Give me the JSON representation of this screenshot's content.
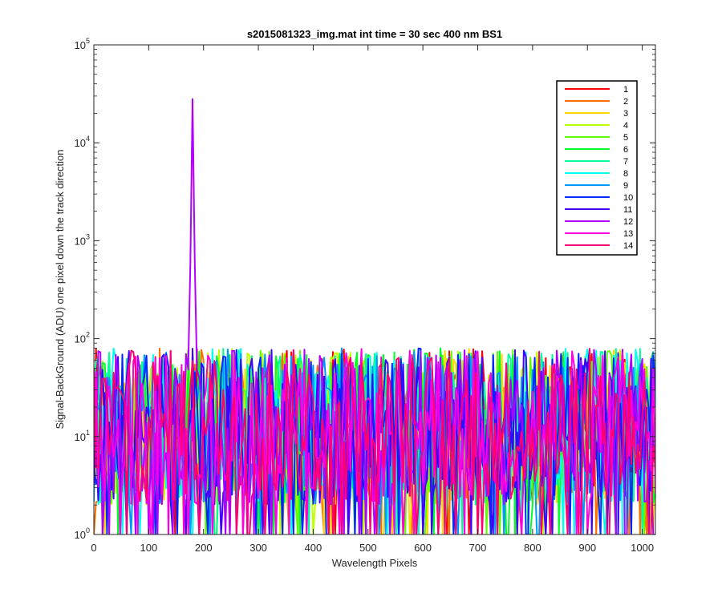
{
  "chart_data": {
    "type": "line",
    "title": "s2015081323_img.mat int time = 30 sec  400 nm BS1",
    "xlabel": "Wavelength Pixels",
    "ylabel": "Signal-BackGround (ADU) one pixel down the track direction",
    "xlim": [
      0,
      1024
    ],
    "ylim": [
      1,
      100000
    ],
    "yscale": "log",
    "x_ticks": [
      0,
      100,
      200,
      300,
      400,
      500,
      600,
      700,
      800,
      900,
      1000
    ],
    "y_ticks": [
      {
        "base": "10",
        "exp": "0",
        "value": 1
      },
      {
        "base": "10",
        "exp": "1",
        "value": 10
      },
      {
        "base": "10",
        "exp": "2",
        "value": 100
      },
      {
        "base": "10",
        "exp": "3",
        "value": 1000
      },
      {
        "base": "10",
        "exp": "4",
        "value": 10000
      },
      {
        "base": "10",
        "exp": "5",
        "value": 100000
      }
    ],
    "grid": false,
    "legend_position": "top-right",
    "noise_range": [
      2,
      80
    ],
    "series": [
      {
        "name": "1",
        "color": "#ff0000"
      },
      {
        "name": "2",
        "color": "#ff6e00"
      },
      {
        "name": "3",
        "color": "#ffd800"
      },
      {
        "name": "4",
        "color": "#bfff00"
      },
      {
        "name": "5",
        "color": "#5cff00"
      },
      {
        "name": "6",
        "color": "#00ff2a"
      },
      {
        "name": "7",
        "color": "#00ff9a"
      },
      {
        "name": "8",
        "color": "#00fff0"
      },
      {
        "name": "9",
        "color": "#0099ff"
      },
      {
        "name": "10",
        "color": "#0026ff"
      },
      {
        "name": "11",
        "color": "#4400ff"
      },
      {
        "name": "12",
        "color": "#b100ff",
        "peak": {
          "x": 180,
          "y": 28000
        }
      },
      {
        "name": "13",
        "color": "#ff00e0"
      },
      {
        "name": "14",
        "color": "#ff0070"
      }
    ]
  }
}
